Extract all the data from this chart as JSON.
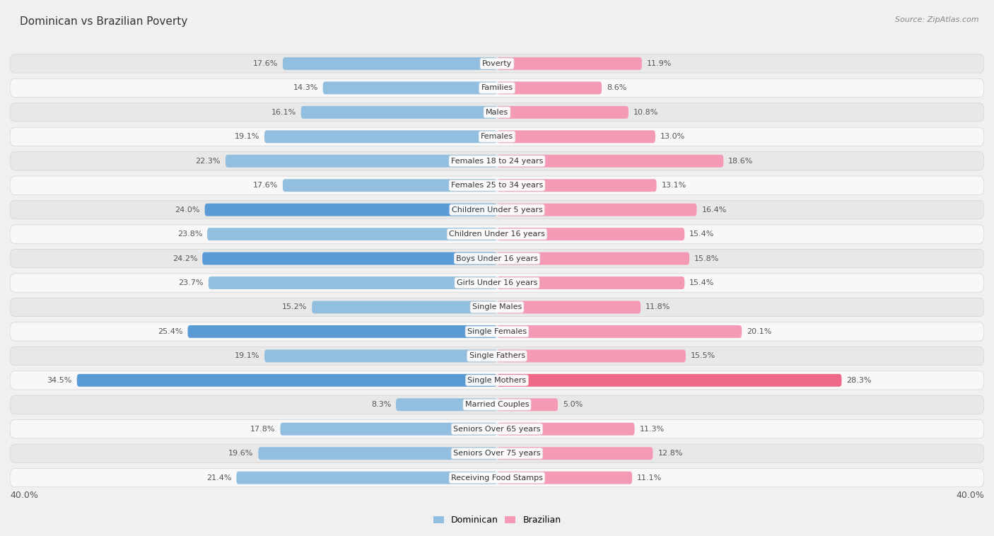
{
  "title": "Dominican vs Brazilian Poverty",
  "source": "Source: ZipAtlas.com",
  "categories": [
    "Poverty",
    "Families",
    "Males",
    "Females",
    "Females 18 to 24 years",
    "Females 25 to 34 years",
    "Children Under 5 years",
    "Children Under 16 years",
    "Boys Under 16 years",
    "Girls Under 16 years",
    "Single Males",
    "Single Females",
    "Single Fathers",
    "Single Mothers",
    "Married Couples",
    "Seniors Over 65 years",
    "Seniors Over 75 years",
    "Receiving Food Stamps"
  ],
  "dominican": [
    17.6,
    14.3,
    16.1,
    19.1,
    22.3,
    17.6,
    24.0,
    23.8,
    24.2,
    23.7,
    15.2,
    25.4,
    19.1,
    34.5,
    8.3,
    17.8,
    19.6,
    21.4
  ],
  "brazilian": [
    11.9,
    8.6,
    10.8,
    13.0,
    18.6,
    13.1,
    16.4,
    15.4,
    15.8,
    15.4,
    11.8,
    20.1,
    15.5,
    28.3,
    5.0,
    11.3,
    12.8,
    11.1
  ],
  "dominican_color": "#92bfdf",
  "brazilian_color": "#f49ab4",
  "dominican_highlight": "#5b9bd5",
  "brazilian_highlight": "#f06888",
  "highlight_dominican": [
    6,
    8,
    11,
    13
  ],
  "highlight_brazilian": [
    13
  ],
  "background_color": "#f0f0f0",
  "row_bg": "#e8e8e8",
  "row_bg_alt": "#f8f8f8",
  "axis_max": 40.0,
  "legend_labels": [
    "Dominican",
    "Brazilian"
  ],
  "title_fontsize": 11,
  "source_fontsize": 8,
  "bar_label_fontsize": 8,
  "cat_label_fontsize": 8
}
